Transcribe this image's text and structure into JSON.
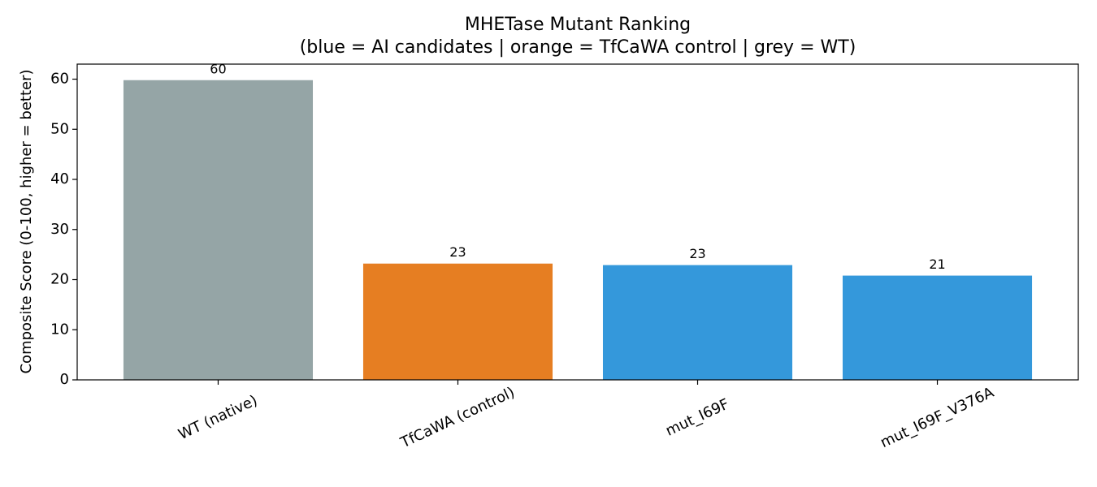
{
  "chart_data": {
    "type": "bar",
    "title": "MHETase Mutant Ranking",
    "subtitle": "(blue = AI candidates | orange = TfCaWA control | grey = WT)",
    "y_label": "Composite Score (0-100, higher = better)",
    "categories": [
      "WT (native)",
      "TfCaWA (control)",
      "mut_I69F",
      "mut_I69F_V376A"
    ],
    "values": [
      59.8,
      23.2,
      22.9,
      20.8
    ],
    "value_labels": [
      "60",
      "23",
      "23",
      "21"
    ],
    "colors": [
      "#95a5a6",
      "#e67e22",
      "#3498db",
      "#3498db"
    ],
    "ylim": [
      0,
      63
    ],
    "yticks": [
      0,
      10,
      20,
      30,
      40,
      50,
      60
    ]
  }
}
